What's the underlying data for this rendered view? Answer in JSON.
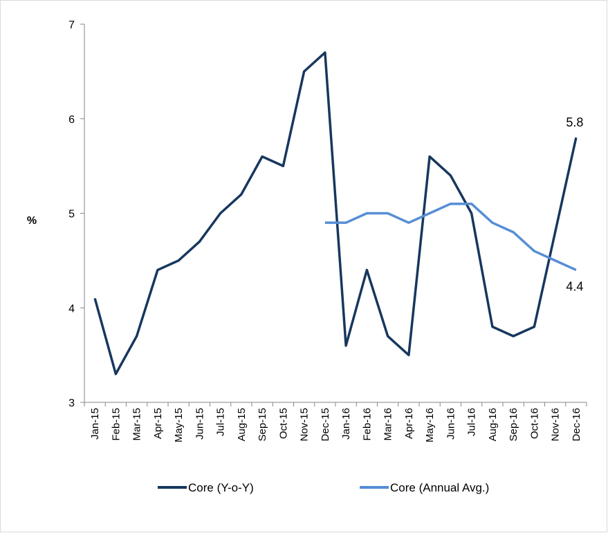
{
  "chart_data": {
    "type": "line",
    "ylabel": "%",
    "categories": [
      "Jan-15",
      "Feb-15",
      "Mar-15",
      "Apr-15",
      "May-15",
      "Jun-15",
      "Jul-15",
      "Aug-15",
      "Sep-15",
      "Oct-15",
      "Nov-15",
      "Dec-15",
      "Jan-16",
      "Feb-16",
      "Mar-16",
      "Apr-16",
      "May-16",
      "Jun-16",
      "Jul-16",
      "Aug-16",
      "Sep-16",
      "Oct-16",
      "Nov-16",
      "Dec-16"
    ],
    "series": [
      {
        "name": "Core (Y-o-Y)",
        "color": "#17375e",
        "label_last": true,
        "values": [
          4.1,
          3.3,
          3.7,
          4.4,
          4.5,
          4.7,
          5.0,
          5.2,
          5.6,
          5.5,
          6.5,
          6.7,
          3.6,
          4.4,
          3.7,
          3.5,
          5.6,
          5.4,
          5.0,
          3.8,
          3.7,
          3.8,
          4.8,
          5.8
        ]
      },
      {
        "name": "Core (Annual Avg.)",
        "color": "#558ed5",
        "label_last": true,
        "values": [
          null,
          null,
          null,
          null,
          null,
          null,
          null,
          null,
          null,
          null,
          null,
          4.9,
          4.9,
          5.0,
          5.0,
          4.9,
          5.0,
          5.1,
          5.1,
          4.9,
          4.8,
          4.6,
          4.5,
          4.4
        ]
      }
    ],
    "ylim": [
      3,
      7
    ],
    "yticks": [
      3,
      4,
      5,
      6,
      7
    ],
    "grid": false,
    "legend": "bottom"
  }
}
